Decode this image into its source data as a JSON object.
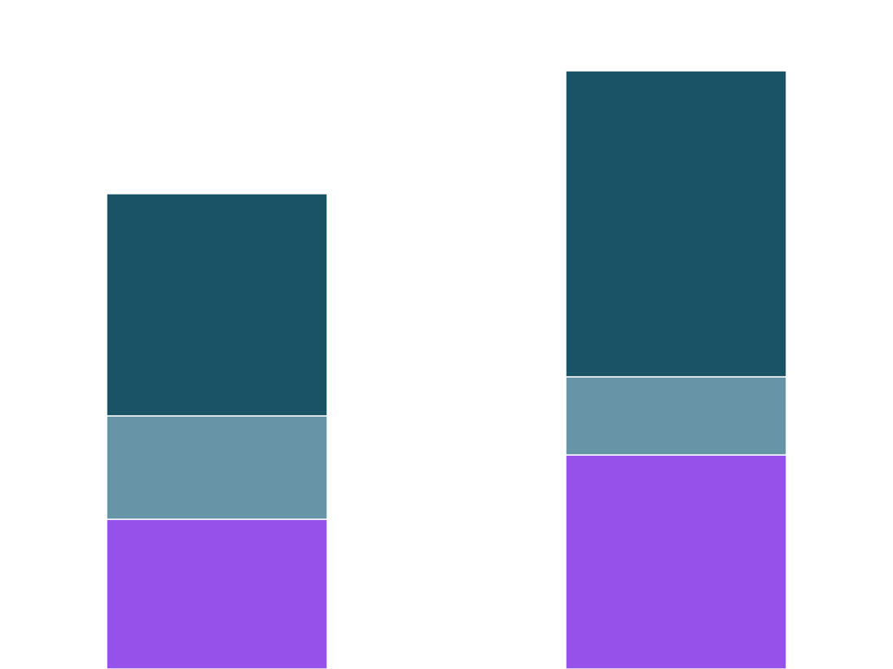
{
  "chart_data": {
    "type": "bar",
    "stacked": true,
    "title": "",
    "xlabel": "",
    "ylabel": "",
    "categories": [
      "",
      ""
    ],
    "series": [
      {
        "color": "#9651eb",
        "values": [
          184,
          263
        ]
      },
      {
        "color": "#6894a8",
        "values": [
          127,
          96
        ]
      },
      {
        "color": "#1b5366",
        "values": [
          273,
          376
        ]
      }
    ],
    "ylim": [
      0,
      822
    ],
    "grid": false,
    "legend": "none",
    "axes_visible": false
  }
}
